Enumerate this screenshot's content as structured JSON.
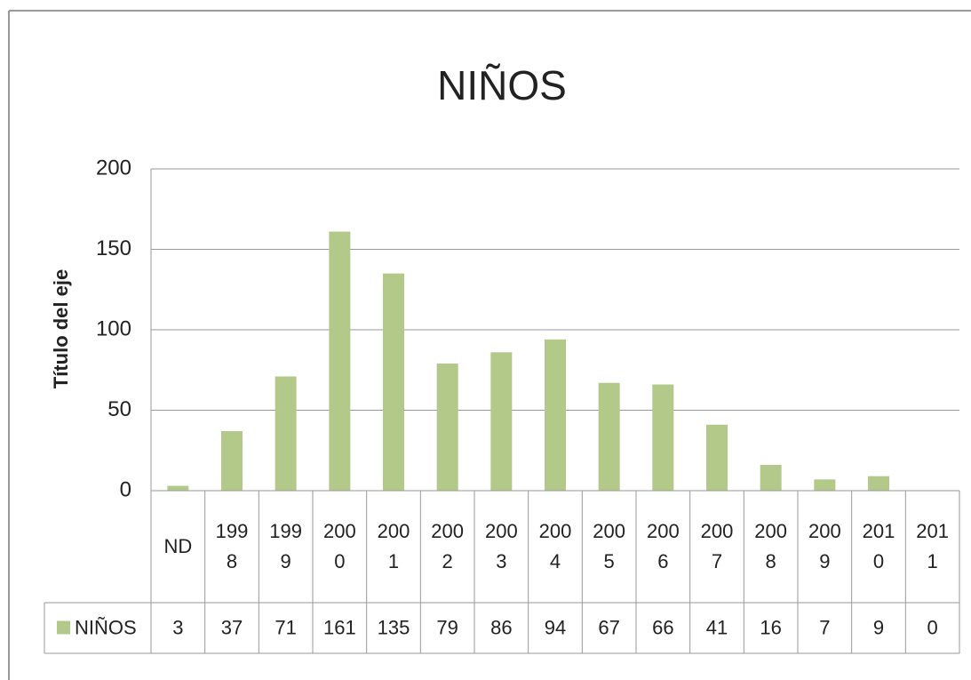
{
  "chart_data": {
    "type": "bar",
    "title": "NIÑOS",
    "y_axis_label": "Título del eje",
    "categories": [
      "ND",
      "1998",
      "1999",
      "2000",
      "2001",
      "2002",
      "2003",
      "2004",
      "2005",
      "2006",
      "2007",
      "2008",
      "2009",
      "2010",
      "2011"
    ],
    "series": [
      {
        "name": "NIÑOS",
        "color": "#b2c98a",
        "values": [
          3,
          37,
          71,
          161,
          135,
          79,
          86,
          94,
          67,
          66,
          41,
          16,
          7,
          9,
          0
        ]
      }
    ],
    "ylim": [
      0,
      200
    ],
    "yticks": [
      0,
      50,
      100,
      150,
      200
    ],
    "grid": true,
    "data_table": true
  }
}
